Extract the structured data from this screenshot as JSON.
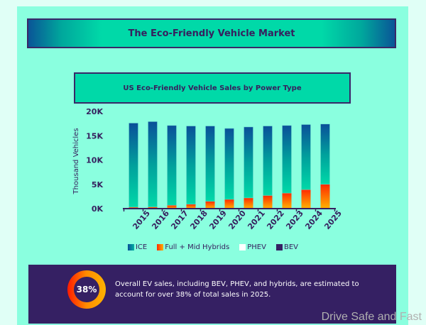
{
  "header": {
    "title": "The Eco-Friendly Vehicle Market"
  },
  "chart_data": {
    "type": "bar",
    "stacked": true,
    "title": "US Eco-Friendly Vehicle Sales by Power Type",
    "xlabel": "",
    "ylabel": "Thousand Vehicles",
    "ylim": [
      0,
      20
    ],
    "yticks": [
      "0K",
      "5K",
      "10K",
      "15K",
      "20K"
    ],
    "categories": [
      "2015",
      "2016",
      "2017",
      "2018",
      "2019",
      "2020",
      "2021",
      "2022",
      "2023",
      "2024",
      "2025"
    ],
    "series": [
      {
        "name": "Full + Mid Hybrids",
        "values": [
          0.3,
          0.35,
          0.7,
          0.9,
          1.5,
          1.9,
          2.2,
          2.7,
          3.2,
          3.9,
          5.0
        ]
      },
      {
        "name": "ICE",
        "values": [
          17.3,
          17.55,
          16.4,
          16.1,
          15.5,
          14.6,
          14.6,
          14.3,
          13.9,
          13.4,
          12.4
        ]
      }
    ],
    "legend": [
      {
        "name": "ICE",
        "color": "#0a5fa0"
      },
      {
        "name": "Full + Mid Hybrids",
        "color": "#ff5a00"
      },
      {
        "name": "PHEV",
        "color": "#ffffff"
      },
      {
        "name": "BEV",
        "color": "#352063"
      }
    ],
    "legend_position": "bottom"
  },
  "callout": {
    "percent": "38%",
    "text": "Overall EV sales, including BEV, PHEV, and hybrids, are estimated to account for over 38% of total sales in 2025."
  },
  "watermark": "Drive Safe and Fast"
}
